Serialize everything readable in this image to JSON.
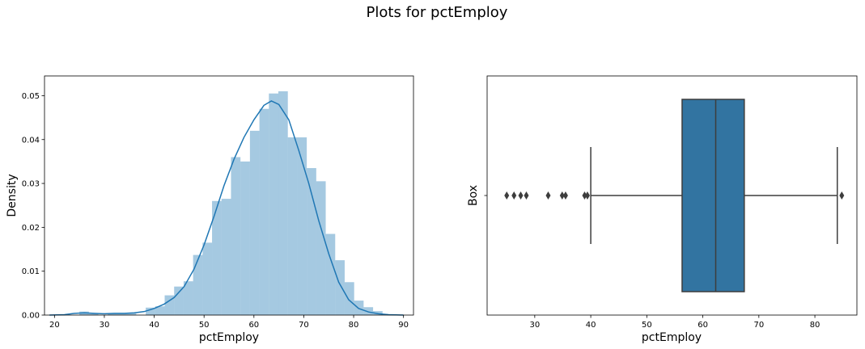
{
  "figure": {
    "title": "Plots for pctEmploy"
  },
  "chart_data": [
    {
      "type": "bar",
      "subtype": "histogram-with-kde",
      "xlabel": "pctEmploy",
      "ylabel": "Density",
      "xlim": [
        18,
        92
      ],
      "ylim": [
        0,
        0.0545
      ],
      "x_ticks": [
        20,
        30,
        40,
        50,
        60,
        70,
        80,
        90
      ],
      "y_ticks": [
        "0.00",
        "0.01",
        "0.02",
        "0.03",
        "0.04",
        "0.05"
      ],
      "grid": false,
      "colors": {
        "bars": "#1f77b4",
        "bar_alpha": 0.4,
        "kde": "#1f77b4"
      },
      "bins": [
        {
          "x0": 25.0,
          "x1": 26.9,
          "density": 0.0008
        },
        {
          "x0": 26.9,
          "x1": 28.8,
          "density": 0.0003
        },
        {
          "x0": 28.8,
          "x1": 30.7,
          "density": 0.0
        },
        {
          "x0": 30.7,
          "x1": 32.6,
          "density": 0.0004
        },
        {
          "x0": 32.6,
          "x1": 34.5,
          "density": 0.0004
        },
        {
          "x0": 34.5,
          "x1": 36.4,
          "density": 0.0004
        },
        {
          "x0": 36.4,
          "x1": 38.3,
          "density": 0.0
        },
        {
          "x0": 38.3,
          "x1": 40.2,
          "density": 0.0017
        },
        {
          "x0": 40.2,
          "x1": 42.1,
          "density": 0.002
        },
        {
          "x0": 42.1,
          "x1": 44.0,
          "density": 0.0045
        },
        {
          "x0": 44.0,
          "x1": 45.9,
          "density": 0.0065
        },
        {
          "x0": 45.9,
          "x1": 47.8,
          "density": 0.0077
        },
        {
          "x0": 47.8,
          "x1": 49.7,
          "density": 0.0137
        },
        {
          "x0": 49.7,
          "x1": 51.6,
          "density": 0.0165
        },
        {
          "x0": 51.6,
          "x1": 53.5,
          "density": 0.026
        },
        {
          "x0": 53.5,
          "x1": 55.4,
          "density": 0.0265
        },
        {
          "x0": 55.4,
          "x1": 57.3,
          "density": 0.036
        },
        {
          "x0": 57.3,
          "x1": 59.2,
          "density": 0.035
        },
        {
          "x0": 59.2,
          "x1": 61.1,
          "density": 0.042
        },
        {
          "x0": 61.1,
          "x1": 63.0,
          "density": 0.047
        },
        {
          "x0": 63.0,
          "x1": 64.9,
          "density": 0.0505
        },
        {
          "x0": 64.9,
          "x1": 66.8,
          "density": 0.051
        },
        {
          "x0": 66.8,
          "x1": 68.7,
          "density": 0.0405
        },
        {
          "x0": 68.7,
          "x1": 70.6,
          "density": 0.0405
        },
        {
          "x0": 70.6,
          "x1": 72.5,
          "density": 0.0335
        },
        {
          "x0": 72.5,
          "x1": 74.4,
          "density": 0.0305
        },
        {
          "x0": 74.4,
          "x1": 76.3,
          "density": 0.0185
        },
        {
          "x0": 76.3,
          "x1": 78.2,
          "density": 0.0125
        },
        {
          "x0": 78.2,
          "x1": 80.1,
          "density": 0.0075
        },
        {
          "x0": 80.1,
          "x1": 82.0,
          "density": 0.0033
        },
        {
          "x0": 82.0,
          "x1": 83.9,
          "density": 0.0018
        },
        {
          "x0": 83.9,
          "x1": 85.8,
          "density": 0.0009
        }
      ],
      "kde": {
        "x": [
          19,
          22,
          24,
          26,
          28,
          30,
          32,
          34,
          36,
          38,
          40,
          42,
          44,
          46,
          48,
          50,
          52,
          54,
          56,
          58,
          60,
          62,
          63.5,
          65,
          67,
          69,
          71,
          73,
          75,
          77,
          79,
          81,
          83,
          85,
          87,
          90
        ],
        "y": [
          0.0,
          0.0001,
          0.0004,
          0.0005,
          0.0004,
          0.0003,
          0.0004,
          0.0004,
          0.0005,
          0.0008,
          0.0015,
          0.0025,
          0.004,
          0.0065,
          0.0105,
          0.016,
          0.0225,
          0.0295,
          0.0355,
          0.0405,
          0.0445,
          0.0478,
          0.0488,
          0.048,
          0.0445,
          0.0375,
          0.03,
          0.0215,
          0.014,
          0.0075,
          0.0035,
          0.0015,
          0.0007,
          0.0003,
          0.0001,
          0.0
        ]
      }
    },
    {
      "type": "box",
      "orientation": "horizontal",
      "xlabel": "pctEmploy",
      "ylabel": "Box",
      "category_ticks": [
        ""
      ],
      "xlim": [
        21.5,
        87.5
      ],
      "x_ticks": [
        30,
        40,
        50,
        60,
        70,
        80
      ],
      "grid": false,
      "colors": {
        "box": "#3274a1",
        "lines": "#3d3d3d"
      },
      "stats": {
        "whisker_low": 40.0,
        "q1": 56.3,
        "median": 62.3,
        "q3": 67.4,
        "whisker_high": 84.0
      },
      "outliers": [
        25.0,
        26.3,
        27.5,
        28.5,
        32.4,
        34.9,
        35.5,
        38.9,
        39.4,
        84.8
      ]
    }
  ]
}
